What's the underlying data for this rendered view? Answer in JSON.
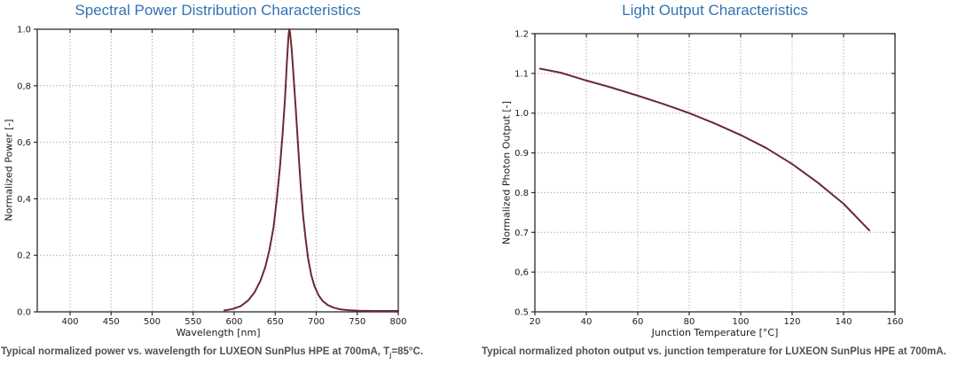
{
  "colors": {
    "title": "#3273b3",
    "curve": "#6a2a33",
    "caption": "#515151",
    "axis": "#1a1a1a",
    "grid": "#909090"
  },
  "chart_data": [
    {
      "type": "line",
      "title": "Spectral Power Distribution Characteristics",
      "xlabel": "Wavelength [nm]",
      "ylabel": "Normalized Power [-]",
      "xlim": [
        360,
        800
      ],
      "ylim": [
        0,
        1.0
      ],
      "grid": "dotted",
      "legend": "none",
      "xticks": [
        {
          "v": 400,
          "label": "400"
        },
        {
          "v": 450,
          "label": "450"
        },
        {
          "v": 500,
          "label": "500"
        },
        {
          "v": 550,
          "label": "550"
        },
        {
          "v": 600,
          "label": "600"
        },
        {
          "v": 650,
          "label": "650"
        },
        {
          "v": 700,
          "label": "700"
        },
        {
          "v": 750,
          "label": "750"
        },
        {
          "v": 800,
          "label": "800"
        }
      ],
      "yticks": [
        {
          "v": 0.0,
          "label": "0.0"
        },
        {
          "v": 0.2,
          "label": "0.2"
        },
        {
          "v": 0.4,
          "label": "0,4"
        },
        {
          "v": 0.6,
          "label": "0,6"
        },
        {
          "v": 0.8,
          "label": "0,8"
        },
        {
          "v": 1.0,
          "label": "1.0"
        }
      ],
      "series": [
        {
          "name": "spectral power (peak ~666 nm, FWHM ~20 nm)",
          "color": "#6a2a33",
          "points": [
            [
              588,
              0.005
            ],
            [
              598,
              0.01
            ],
            [
              608,
              0.02
            ],
            [
              617,
              0.04
            ],
            [
              625,
              0.07
            ],
            [
              632,
              0.11
            ],
            [
              638,
              0.16
            ],
            [
              643,
              0.22
            ],
            [
              648,
              0.3
            ],
            [
              652,
              0.4
            ],
            [
              656,
              0.52
            ],
            [
              659,
              0.63
            ],
            [
              662,
              0.76
            ],
            [
              664,
              0.87
            ],
            [
              666,
              0.97
            ],
            [
              667,
              1.0
            ],
            [
              668,
              0.99
            ],
            [
              670,
              0.93
            ],
            [
              672,
              0.85
            ],
            [
              675,
              0.72
            ],
            [
              678,
              0.58
            ],
            [
              681,
              0.45
            ],
            [
              684,
              0.34
            ],
            [
              687,
              0.26
            ],
            [
              690,
              0.19
            ],
            [
              694,
              0.13
            ],
            [
              698,
              0.09
            ],
            [
              703,
              0.058
            ],
            [
              708,
              0.038
            ],
            [
              714,
              0.024
            ],
            [
              721,
              0.015
            ],
            [
              729,
              0.009
            ],
            [
              739,
              0.006
            ],
            [
              752,
              0.004
            ],
            [
              770,
              0.003
            ],
            [
              800,
              0.003
            ]
          ]
        }
      ],
      "caption": {
        "main": "Typical normalized power vs. wavelength for LUXEON SunPlus HPE at 700mA, T",
        "sub": "j",
        "tail": "=85°C."
      }
    },
    {
      "type": "line",
      "title": "Light Output Characteristics",
      "xlabel": "Junction Temperature [°C]",
      "ylabel": "Normalized Photon Output [-]",
      "xlim": [
        20,
        160
      ],
      "ylim": [
        0.5,
        1.2
      ],
      "grid": "dotted",
      "legend": "none",
      "xticks": [
        {
          "v": 20,
          "label": "20"
        },
        {
          "v": 40,
          "label": "40"
        },
        {
          "v": 60,
          "label": "60"
        },
        {
          "v": 80,
          "label": "80"
        },
        {
          "v": 100,
          "label": "100"
        },
        {
          "v": 120,
          "label": "120"
        },
        {
          "v": 140,
          "label": "140"
        },
        {
          "v": 160,
          "label": "160"
        }
      ],
      "yticks": [
        {
          "v": 0.5,
          "label": "0.5"
        },
        {
          "v": 0.6,
          "label": "0,6"
        },
        {
          "v": 0.7,
          "label": "0.7"
        },
        {
          "v": 0.8,
          "label": "0.8"
        },
        {
          "v": 0.9,
          "label": "0.9"
        },
        {
          "v": 1.0,
          "label": "1.0"
        },
        {
          "v": 1.1,
          "label": "1.1"
        },
        {
          "v": 1.2,
          "label": "1.2"
        }
      ],
      "series": [
        {
          "name": "photon output vs junction temperature",
          "color": "#6a2a33",
          "points": [
            [
              22,
              1.112
            ],
            [
              30,
              1.102
            ],
            [
              40,
              1.082
            ],
            [
              50,
              1.064
            ],
            [
              60,
              1.044
            ],
            [
              70,
              1.023
            ],
            [
              80,
              1.0
            ],
            [
              90,
              0.974
            ],
            [
              100,
              0.945
            ],
            [
              110,
              0.912
            ],
            [
              120,
              0.872
            ],
            [
              130,
              0.825
            ],
            [
              140,
              0.772
            ],
            [
              150,
              0.705
            ]
          ]
        }
      ],
      "caption": {
        "main": "Typical normalized photon output vs. junction temperature for LUXEON SunPlus HPE at 700mA.",
        "sub": "",
        "tail": ""
      }
    }
  ]
}
